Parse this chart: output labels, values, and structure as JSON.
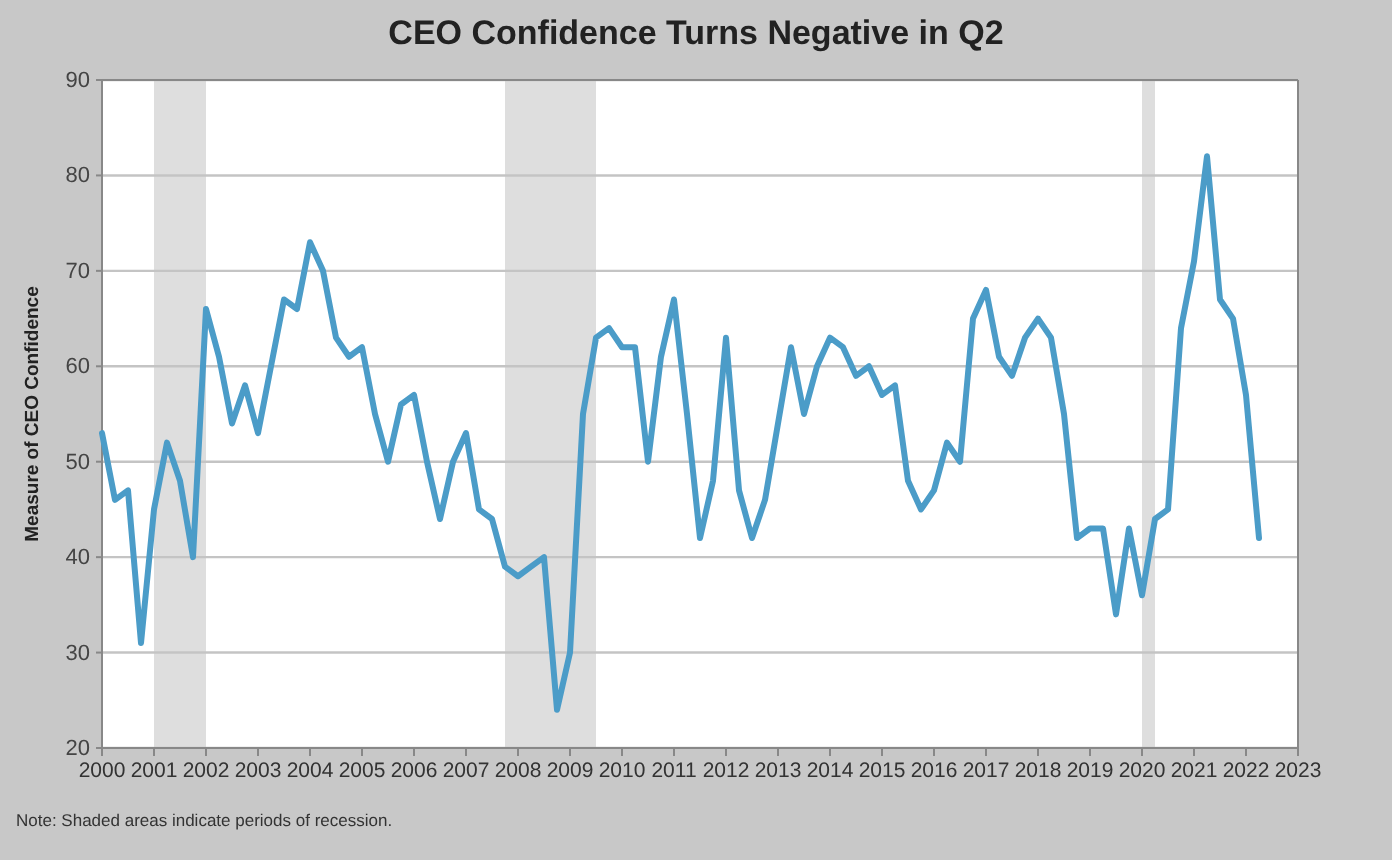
{
  "chart_data": {
    "type": "line",
    "title": "CEO Confidence Turns Negative in Q2",
    "ylabel": "Measure of CEO Confidence",
    "x": [
      2000,
      2000.25,
      2000.5,
      2000.75,
      2001,
      2001.25,
      2001.5,
      2001.75,
      2002,
      2002.25,
      2002.5,
      2002.75,
      2003,
      2003.25,
      2003.5,
      2003.75,
      2004,
      2004.25,
      2004.5,
      2004.75,
      2005,
      2005.25,
      2005.5,
      2005.75,
      2006,
      2006.25,
      2006.5,
      2006.75,
      2007,
      2007.25,
      2007.5,
      2007.75,
      2008,
      2008.25,
      2008.5,
      2008.75,
      2009,
      2009.25,
      2009.5,
      2009.75,
      2010,
      2010.25,
      2010.5,
      2010.75,
      2011,
      2011.25,
      2011.5,
      2011.75,
      2012,
      2012.25,
      2012.5,
      2012.75,
      2013,
      2013.25,
      2013.5,
      2013.75,
      2014,
      2014.25,
      2014.5,
      2014.75,
      2015,
      2015.25,
      2015.5,
      2015.75,
      2016,
      2016.25,
      2016.5,
      2016.75,
      2017,
      2017.25,
      2017.5,
      2017.75,
      2018,
      2018.25,
      2018.5,
      2018.75,
      2019,
      2019.25,
      2019.5,
      2019.75,
      2020,
      2020.25,
      2020.5,
      2020.75,
      2021,
      2021.25,
      2021.5,
      2021.75,
      2022,
      2022.25
    ],
    "series": [
      {
        "color": "#4b9cc8",
        "values": [
          53,
          46,
          47,
          31,
          45,
          52,
          48,
          40,
          66,
          61,
          54,
          58,
          53,
          60,
          67,
          66,
          73,
          70,
          63,
          61,
          62,
          55,
          50,
          56,
          57,
          50,
          44,
          50,
          53,
          45,
          44,
          39,
          38,
          39,
          40,
          24,
          30,
          55,
          63,
          64,
          62,
          62,
          50,
          61,
          67,
          55,
          42,
          48,
          63,
          47,
          42,
          46,
          54,
          62,
          55,
          60,
          63,
          62,
          59,
          60,
          57,
          58,
          48,
          45,
          47,
          52,
          50,
          65,
          68,
          61,
          59,
          63,
          65,
          63,
          55,
          42,
          43,
          43,
          34,
          43,
          36,
          44,
          45,
          64,
          71,
          82,
          67,
          65,
          57,
          42
        ]
      }
    ],
    "xlim": [
      2000,
      2023
    ],
    "xticks": [
      2000,
      2001,
      2002,
      2003,
      2004,
      2005,
      2006,
      2007,
      2008,
      2009,
      2010,
      2011,
      2012,
      2013,
      2014,
      2015,
      2016,
      2017,
      2018,
      2019,
      2020,
      2021,
      2022,
      2023
    ],
    "ylim": [
      20,
      90
    ],
    "yticks": [
      20,
      30,
      40,
      50,
      60,
      70,
      80,
      90
    ],
    "grid": "y",
    "marker": "none",
    "line_style": "solid",
    "bands": [
      {
        "axis": "x",
        "from": 2001,
        "to": 2002,
        "color": "#dedede"
      },
      {
        "axis": "x",
        "from": 2007.75,
        "to": 2009.5,
        "color": "#dedede"
      },
      {
        "axis": "x",
        "from": 2020,
        "to": 2020.25,
        "color": "#dedede"
      }
    ],
    "annotations": [
      "Note: Shaded areas indicate periods of recession."
    ]
  }
}
